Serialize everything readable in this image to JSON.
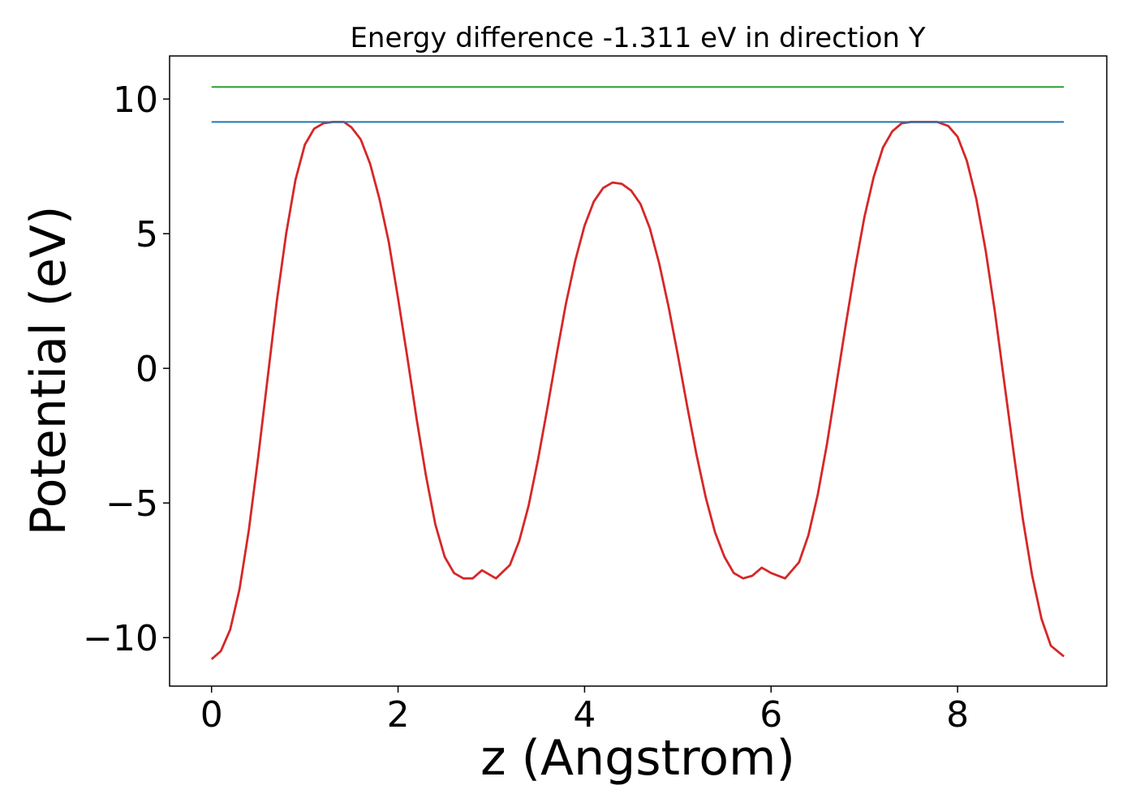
{
  "chart_data": {
    "type": "line",
    "title": "Energy difference -1.311 eV in direction Y",
    "xlabel": "z (Angstrom)",
    "ylabel": "Potential (eV)",
    "xlim": [
      -0.45,
      9.6
    ],
    "ylim": [
      -11.8,
      11.6
    ],
    "xticks": [
      0,
      2,
      4,
      6,
      8
    ],
    "xtick_labels": [
      "0",
      "2",
      "4",
      "6",
      "8"
    ],
    "yticks": [
      -10,
      -5,
      0,
      5,
      10
    ],
    "ytick_labels": [
      "−10",
      "−5",
      "0",
      "5",
      "10"
    ],
    "grid": false,
    "legend": "none",
    "series": [
      {
        "color": "#d62728",
        "x": [
          0,
          0.1,
          0.2,
          0.3,
          0.4,
          0.5,
          0.6,
          0.7,
          0.8,
          0.9,
          1.0,
          1.1,
          1.2,
          1.3,
          1.42,
          1.5,
          1.6,
          1.7,
          1.8,
          1.9,
          2.0,
          2.1,
          2.2,
          2.3,
          2.4,
          2.5,
          2.6,
          2.7,
          2.8,
          2.9,
          3.05,
          3.2,
          3.3,
          3.4,
          3.5,
          3.6,
          3.7,
          3.8,
          3.9,
          4.0,
          4.1,
          4.2,
          4.3,
          4.4,
          4.5,
          4.6,
          4.7,
          4.8,
          4.9,
          5.0,
          5.1,
          5.2,
          5.3,
          5.4,
          5.5,
          5.6,
          5.7,
          5.8,
          5.9,
          6.0,
          6.15,
          6.3,
          6.4,
          6.5,
          6.6,
          6.7,
          6.8,
          6.9,
          7.0,
          7.1,
          7.2,
          7.3,
          7.4,
          7.5,
          7.6,
          7.78,
          7.9,
          8.0,
          8.1,
          8.2,
          8.3,
          8.4,
          8.5,
          8.6,
          8.7,
          8.8,
          8.9,
          9.0,
          9.14
        ],
        "y": [
          -10.8,
          -10.5,
          -9.7,
          -8.2,
          -6.0,
          -3.3,
          -0.4,
          2.5,
          5.0,
          7.0,
          8.3,
          8.9,
          9.1,
          9.15,
          9.15,
          8.95,
          8.5,
          7.6,
          6.3,
          4.7,
          2.6,
          0.4,
          -1.9,
          -4.0,
          -5.8,
          -7.0,
          -7.6,
          -7.8,
          -7.8,
          -7.5,
          -7.8,
          -7.3,
          -6.4,
          -5.1,
          -3.4,
          -1.5,
          0.5,
          2.4,
          4.0,
          5.3,
          6.2,
          6.7,
          6.9,
          6.85,
          6.6,
          6.1,
          5.2,
          3.9,
          2.3,
          0.5,
          -1.4,
          -3.2,
          -4.8,
          -6.1,
          -7.0,
          -7.6,
          -7.8,
          -7.7,
          -7.4,
          -7.6,
          -7.8,
          -7.2,
          -6.2,
          -4.7,
          -2.8,
          -0.6,
          1.6,
          3.7,
          5.6,
          7.1,
          8.2,
          8.8,
          9.1,
          9.15,
          9.15,
          9.15,
          9.0,
          8.6,
          7.7,
          6.3,
          4.4,
          2.1,
          -0.5,
          -3.1,
          -5.6,
          -7.7,
          -9.3,
          -10.3,
          -10.7
        ]
      },
      {
        "color": "#1f77b4",
        "x": [
          0,
          9.14
        ],
        "y": [
          9.15,
          9.15
        ]
      },
      {
        "color": "#2ca02c",
        "x": [
          0,
          9.14
        ],
        "y": [
          10.45,
          10.45
        ]
      }
    ]
  }
}
